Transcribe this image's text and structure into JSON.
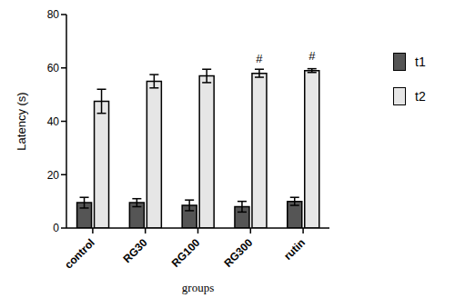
{
  "chart_data": {
    "type": "bar",
    "x_label": "groups",
    "y_label": "Latency (s)",
    "categories": [
      "control",
      "RG30",
      "RG100",
      "RG300",
      "rutin"
    ],
    "series": [
      {
        "name": "t1",
        "color": "#555555",
        "values": [
          9.5,
          9.5,
          8.5,
          8,
          10
        ],
        "errors": [
          2,
          1.5,
          2,
          2,
          1.5
        ]
      },
      {
        "name": "t2",
        "color": "#e6e6e6",
        "values": [
          47.5,
          55,
          57,
          58,
          59
        ],
        "errors": [
          4.5,
          2.5,
          2.5,
          1.5,
          0.7
        ]
      }
    ],
    "ylim": [
      0,
      80
    ],
    "yticks": [
      0,
      20,
      40,
      60,
      80
    ],
    "grid": false,
    "legend": "right",
    "annotations": [
      {
        "category": "RG300",
        "series": "t2",
        "text": "#"
      },
      {
        "category": "rutin",
        "series": "t2",
        "text": "#"
      }
    ]
  }
}
